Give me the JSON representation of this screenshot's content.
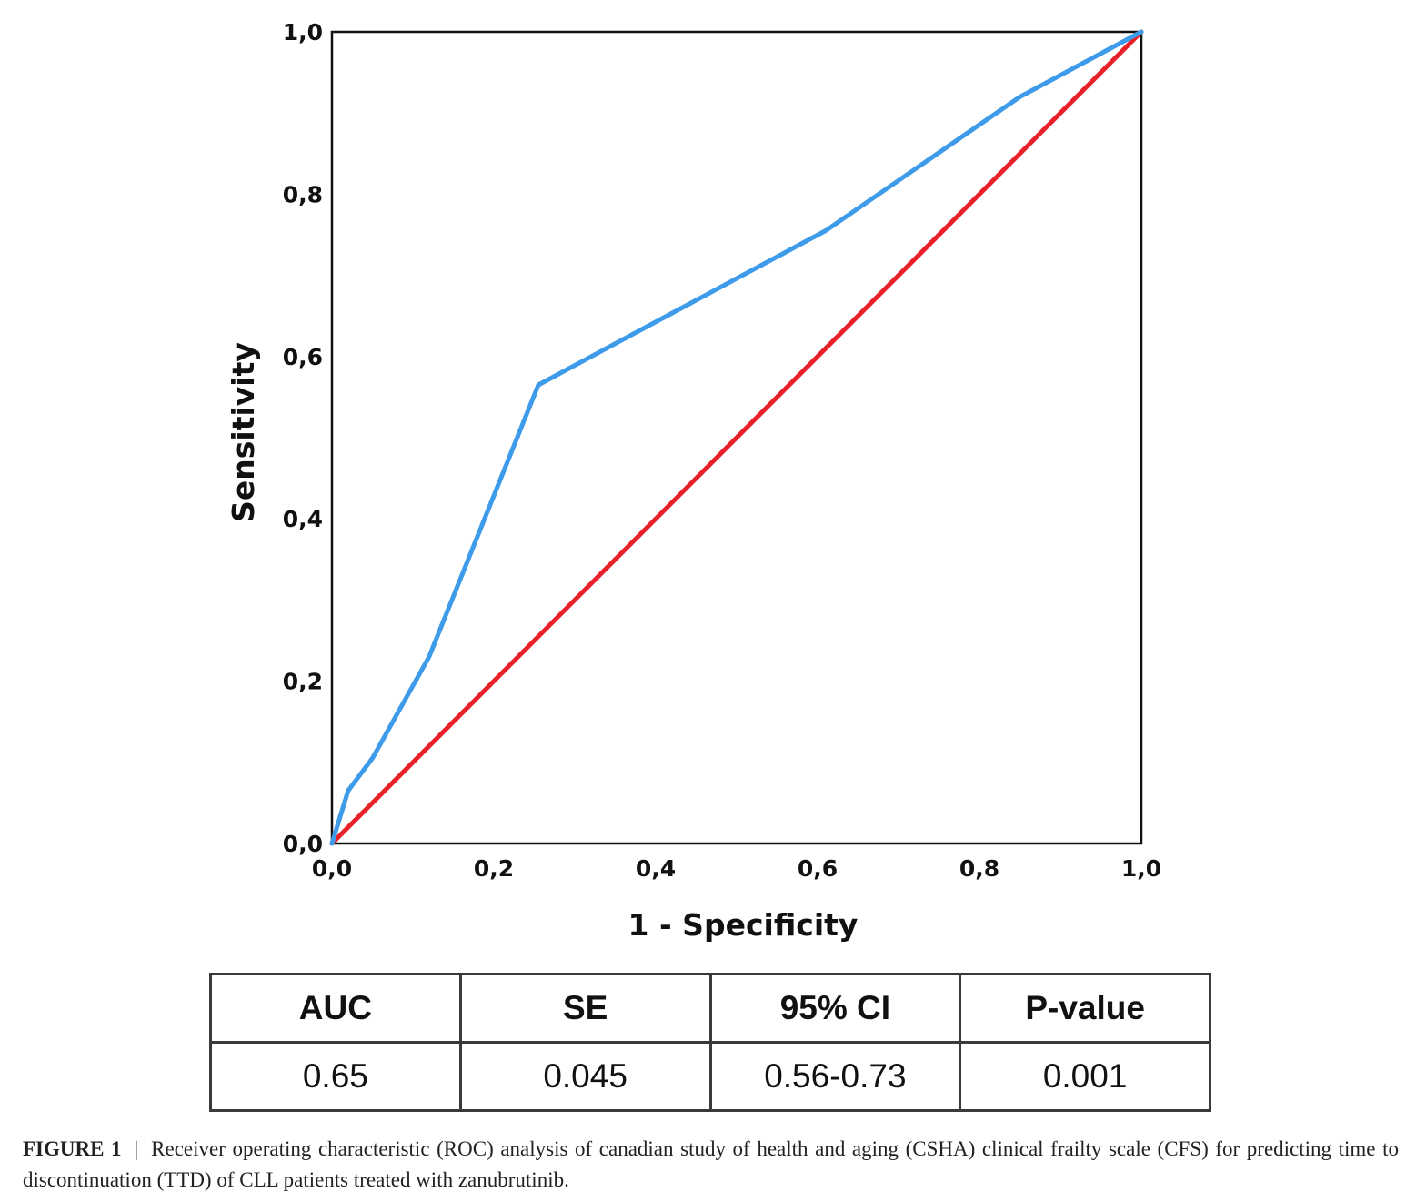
{
  "chart_data": {
    "type": "line",
    "xlabel": "1 - Specificity",
    "ylabel": "Sensitivity",
    "xlim": [
      0,
      1
    ],
    "ylim": [
      0,
      1
    ],
    "x_ticks": [
      "0,0",
      "0,2",
      "0,4",
      "0,6",
      "0,8",
      "1,0"
    ],
    "y_ticks": [
      "0,0",
      "0,2",
      "0,4",
      "0,6",
      "0,8",
      "1,0"
    ],
    "grid": false,
    "series": [
      {
        "color": "#3d9be9",
        "x": [
          0,
          0.02,
          0.05,
          0.12,
          0.255,
          0.61,
          0.85,
          1.0
        ],
        "y": [
          0,
          0.065,
          0.105,
          0.23,
          0.565,
          0.755,
          0.92,
          1.0
        ]
      },
      {
        "color": "#e8202a",
        "x": [
          0,
          1
        ],
        "y": [
          0,
          1
        ]
      }
    ]
  },
  "table": {
    "headers": [
      "AUC",
      "SE",
      "95% CI",
      "P-value"
    ],
    "values": [
      "0.65",
      "0.045",
      "0.56-0.73",
      "0.001"
    ]
  },
  "caption": {
    "label": "FIGURE 1",
    "separator": "|",
    "text": "Receiver operating characteristic (ROC) analysis of canadian study of health and aging (CSHA) clinical frailty scale (CFS) for predicting time to discontinuation (TTD) of CLL patients treated with zanubrutinib."
  }
}
